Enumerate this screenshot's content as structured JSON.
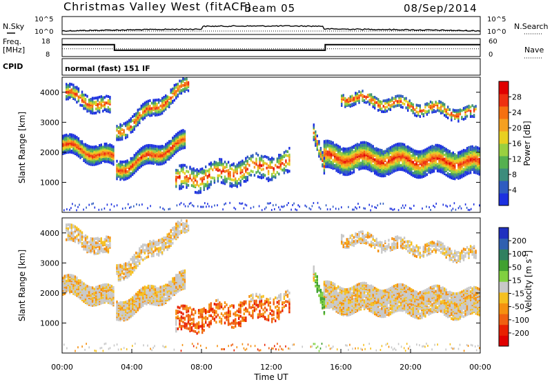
{
  "header": {
    "site": "Christmas Valley West (fitACF)",
    "beam": "Beam 05",
    "date": "08/Sep/2014"
  },
  "left_labels": {
    "nsky": "N.Sky",
    "freq_line1": "Freq.",
    "freq_line2": "[MHz]",
    "cpid": "CPID"
  },
  "right_labels": {
    "nsearch": "N.Search",
    "nave": "Nave"
  },
  "noise_panel": {
    "left_ticks": [
      "10^5",
      "10^0"
    ],
    "right_ticks": [
      "10^5",
      "10^0"
    ]
  },
  "freq_panel": {
    "left_ticks": [
      "18",
      "8"
    ],
    "right_ticks": [
      "60",
      "0"
    ],
    "freq_steps": [
      [
        0,
        14.6
      ],
      [
        3.0,
        11.5
      ],
      [
        15.1,
        11.5
      ],
      [
        15.1,
        14.6
      ],
      [
        24,
        14.6
      ]
    ],
    "nave_level": 26
  },
  "cpid_text": "normal (fast) 151 IF",
  "chart_data": [
    {
      "type": "heatmap",
      "name": "Power",
      "ylabel": "Slant Range [km]",
      "ylim": [
        0,
        4500
      ],
      "xlim": [
        0,
        24
      ],
      "yticks": [
        "1000",
        "2000",
        "3000",
        "4000"
      ],
      "colorbar": {
        "label": "Power [dB]",
        "ticks": [
          "4",
          "8",
          "12",
          "16",
          "20",
          "24",
          "28"
        ],
        "colors": [
          "#1c30e0",
          "#2f5cc0",
          "#3c8c7c",
          "#55b050",
          "#9ad040",
          "#e8d020",
          "#f5a020",
          "#f57010",
          "#ee3010",
          "#e00000"
        ]
      }
    },
    {
      "type": "heatmap",
      "name": "Velocity",
      "ylabel": "Slant Range [km]",
      "xlabel": "Time UT",
      "ylim": [
        0,
        4500
      ],
      "xlim": [
        0,
        24
      ],
      "yticks": [
        "1000",
        "2000",
        "3000",
        "4000"
      ],
      "xticks": [
        "00:00",
        "04:00",
        "08:00",
        "12:00",
        "16:00",
        "20:00",
        "00:00"
      ],
      "colorbar": {
        "label": "Velocity [m s",
        "label_sup": "-1",
        "label_end": "]",
        "ticks": [
          "200",
          "100",
          "50",
          "15",
          "-15",
          "-50",
          "-100",
          "-200"
        ],
        "colors": [
          "#2030c0",
          "#3060b0",
          "#308060",
          "#40a030",
          "#80d040",
          "#c8c8c8",
          "#f5c020",
          "#f59010",
          "#f06010",
          "#e82000",
          "#e00000"
        ]
      }
    }
  ]
}
